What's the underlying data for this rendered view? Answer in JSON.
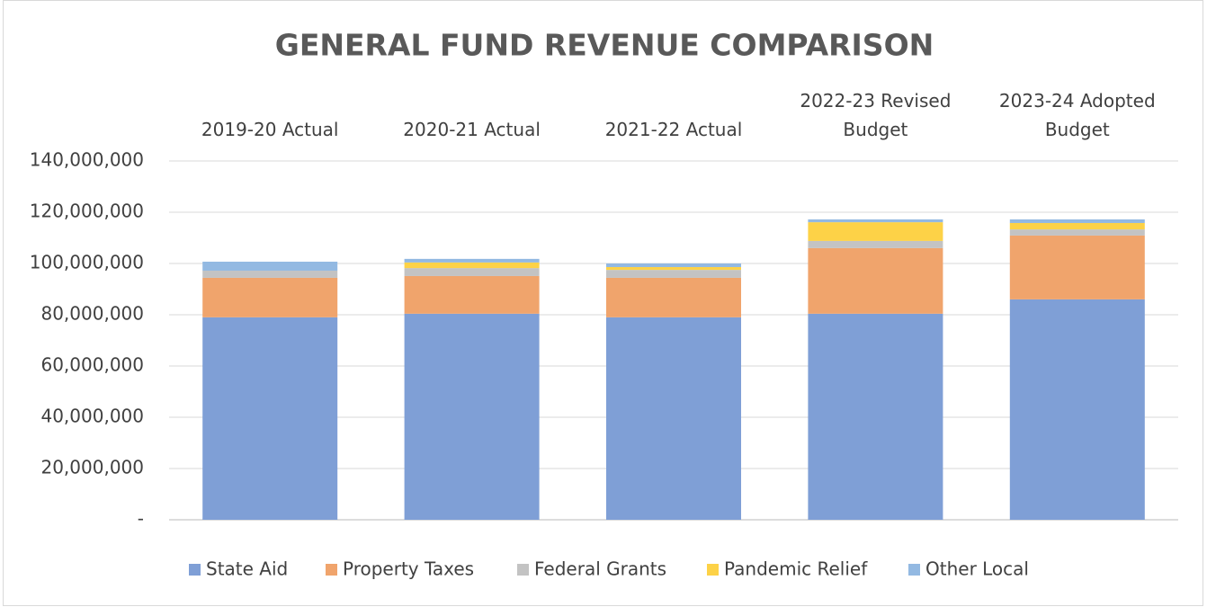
{
  "chart_data": {
    "type": "stacked_bar",
    "title": "GENERAL FUND REVENUE COMPARISON",
    "categories": [
      "2019-20 Actual",
      "2020-21 Actual",
      "2021-22 Actual",
      "2022-23 Revised Budget",
      "2023-24 Adopted Budget"
    ],
    "series": [
      {
        "name": "State Aid",
        "color": "#7f9fd6",
        "values": [
          79000000,
          80400000,
          79000000,
          80400000,
          86000000
        ]
      },
      {
        "name": "Property Taxes",
        "color": "#f0a46c",
        "values": [
          15400000,
          14700000,
          15400000,
          25600000,
          24900000
        ]
      },
      {
        "name": "Federal Grants",
        "color": "#c3c3c3",
        "values": [
          2800000,
          3100000,
          3100000,
          2800000,
          2400000
        ]
      },
      {
        "name": "Pandemic Relief",
        "color": "#fdd247",
        "values": [
          0,
          2200000,
          1100000,
          7300000,
          2500000
        ]
      },
      {
        "name": "Other Local",
        "color": "#93b9e2",
        "values": [
          3500000,
          1400000,
          1400000,
          1100000,
          1400000
        ]
      }
    ],
    "ylim": [
      0,
      140000000
    ],
    "yticks": [
      {
        "value": 0,
        "label": "-"
      },
      {
        "value": 20000000,
        "label": "20,000,000"
      },
      {
        "value": 40000000,
        "label": "40,000,000"
      },
      {
        "value": 60000000,
        "label": "60,000,000"
      },
      {
        "value": 80000000,
        "label": "80,000,000"
      },
      {
        "value": 100000000,
        "label": "100,000,000"
      },
      {
        "value": 120000000,
        "label": "120,000,000"
      },
      {
        "value": 140000000,
        "label": "140,000,000"
      }
    ],
    "grid": true,
    "legend": "bottom"
  }
}
